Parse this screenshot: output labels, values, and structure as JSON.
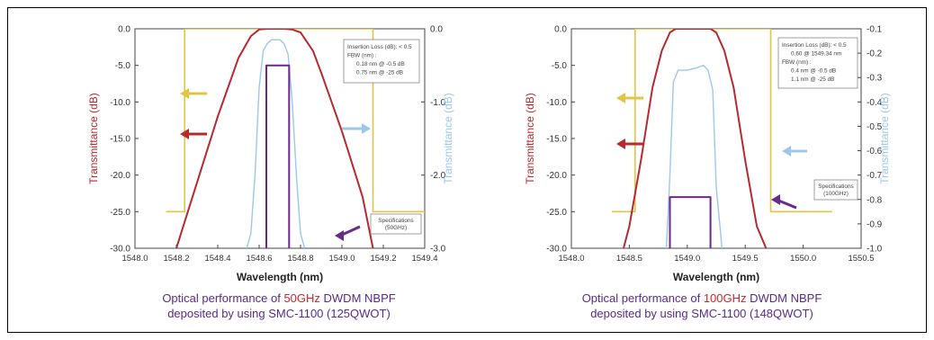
{
  "colors": {
    "red": "#b7292f",
    "blue": "#9cc8ec",
    "yellow": "#e3c447",
    "purple": "#6a2a8c",
    "caption": "#6a3596",
    "caption_highlight": "#d2232a"
  },
  "chart_data": [
    {
      "type": "line",
      "xlabel": "Wavelength (nm)",
      "ylabel": "Transmittance (dB)",
      "y2label": "Transmittance (dB)",
      "xlim": [
        1548.0,
        1549.4
      ],
      "ylim": [
        -30.0,
        0.0
      ],
      "y2lim": [
        -3.0,
        0.0
      ],
      "x_ticks": [
        "1548.0",
        "1548.2",
        "1548.4",
        "1548.6",
        "1548.8",
        "1549.0",
        "1549.2",
        "1549.4"
      ],
      "y_ticks": [
        "0.0",
        "-5.0",
        "-10.0",
        "-15.0",
        "-20.0",
        "-25.0",
        "-30.0"
      ],
      "y2_ticks": [
        "0.0",
        "-1.0",
        "-2.0",
        "-3.0"
      ],
      "annotation_lines": [
        "Insertion Loss (dB): < 0.5",
        "FBW (nm) :",
        "0.18 nm @ -0.5 dB",
        "0.75 nm @ -25 dB"
      ],
      "spec_box": [
        "Specifications",
        "(50GHz)"
      ],
      "caption_parts": [
        "Optical performance of ",
        "50GHz",
        " DWDM NBPF"
      ],
      "caption_line2": "deposited by using SMC-1100 (125QWOT)",
      "series": [
        {
          "x": [
            1548.2,
            1548.3,
            1548.4,
            1548.5,
            1548.56,
            1548.6,
            1548.64,
            1548.68,
            1548.72,
            1548.76,
            1548.8,
            1548.86,
            1548.9,
            1549.0,
            1549.1,
            1549.15
          ],
          "y": [
            -30.0,
            -21.0,
            -12.0,
            -4.0,
            -1.0,
            -0.1,
            0.0,
            0.0,
            0.0,
            -0.1,
            -0.5,
            -3.0,
            -6.0,
            -14.0,
            -23.0,
            -30.0
          ]
        },
        {
          "x": [
            1548.54,
            1548.56,
            1548.58,
            1548.6,
            1548.62,
            1548.64,
            1548.66,
            1548.7,
            1548.72,
            1548.74,
            1548.76,
            1548.78,
            1548.8,
            1548.82
          ],
          "y2": [
            -3.0,
            -2.8,
            -2.0,
            -0.8,
            -0.3,
            -0.2,
            -0.15,
            -0.15,
            -0.2,
            -0.35,
            -1.0,
            -2.0,
            -2.8,
            -3.0
          ]
        },
        {
          "x": [
            1548.15,
            1548.15,
            1548.24,
            1548.24,
            1549.15,
            1549.15,
            1549.4
          ],
          "y": [
            -25.0,
            -25.0,
            -25.0,
            0.0,
            0.0,
            -25.0,
            -25.0
          ]
        },
        {
          "x": [
            1548.635,
            1548.635,
            1548.745,
            1548.745
          ],
          "y": [
            -30.0,
            -5.0,
            -5.0,
            -30.0
          ]
        }
      ]
    },
    {
      "type": "line",
      "xlabel": "Wavelength (nm)",
      "ylabel": "Transmittance (dB)",
      "y2label": "Transmittance (dB)",
      "xlim": [
        1548.0,
        1550.5
      ],
      "ylim": [
        -30.0,
        0.0
      ],
      "y2lim": [
        -1.0,
        -0.1
      ],
      "x_ticks": [
        "1548.0",
        "1548.5",
        "1549.0",
        "1549.5",
        "1550.0",
        "1550.5"
      ],
      "y_ticks": [
        "0.0",
        "-5.0",
        "-10.0",
        "-15.0",
        "-20.0",
        "-25.0",
        "-30.0"
      ],
      "y2_ticks": [
        "-0.1",
        "-0.2",
        "-0.3",
        "-0.4",
        "-0.5",
        "-0.6",
        "-0.7",
        "-0.8",
        "-0.9",
        "-1.0"
      ],
      "annotation_lines": [
        "Insertion Loss (dB): < 0.5",
        "0.60 @ 1549.34 nm",
        "FBW (nm) :",
        "0.4 nm @ -0.5 dB",
        "1.1 nm @ -25 dB"
      ],
      "spec_box": [
        "Specifications",
        "(100GHz)"
      ],
      "caption_parts": [
        "Optical performance of ",
        "100GHz",
        " DWDM NBPF"
      ],
      "caption_line2": "deposited by using SMC-1100 (148QWOT)",
      "series": [
        {
          "x": [
            1548.45,
            1548.5,
            1548.6,
            1548.7,
            1548.78,
            1548.85,
            1548.9,
            1549.2,
            1549.25,
            1549.32,
            1549.4,
            1549.5,
            1549.6,
            1549.68
          ],
          "y": [
            -30.0,
            -27.0,
            -18.0,
            -8.0,
            -3.0,
            -0.5,
            0.0,
            0.0,
            -0.5,
            -3.0,
            -8.0,
            -18.0,
            -27.0,
            -30.0
          ]
        },
        {
          "x": [
            1548.82,
            1548.85,
            1548.88,
            1548.92,
            1549.0,
            1549.08,
            1549.14,
            1549.18,
            1549.22,
            1549.25,
            1549.3
          ],
          "y2": [
            -1.0,
            -0.7,
            -0.32,
            -0.27,
            -0.27,
            -0.26,
            -0.25,
            -0.27,
            -0.35,
            -0.75,
            -1.0
          ]
        },
        {
          "x": [
            1548.35,
            1548.35,
            1548.55,
            1548.55,
            1549.72,
            1549.72,
            1550.25
          ],
          "y": [
            -25.0,
            -25.0,
            -25.0,
            0.0,
            0.0,
            -25.0,
            -25.0
          ]
        },
        {
          "x": [
            1548.85,
            1548.85,
            1549.2,
            1549.2
          ],
          "y": [
            -30.0,
            -23.0,
            -23.0,
            -30.0
          ]
        }
      ]
    }
  ]
}
